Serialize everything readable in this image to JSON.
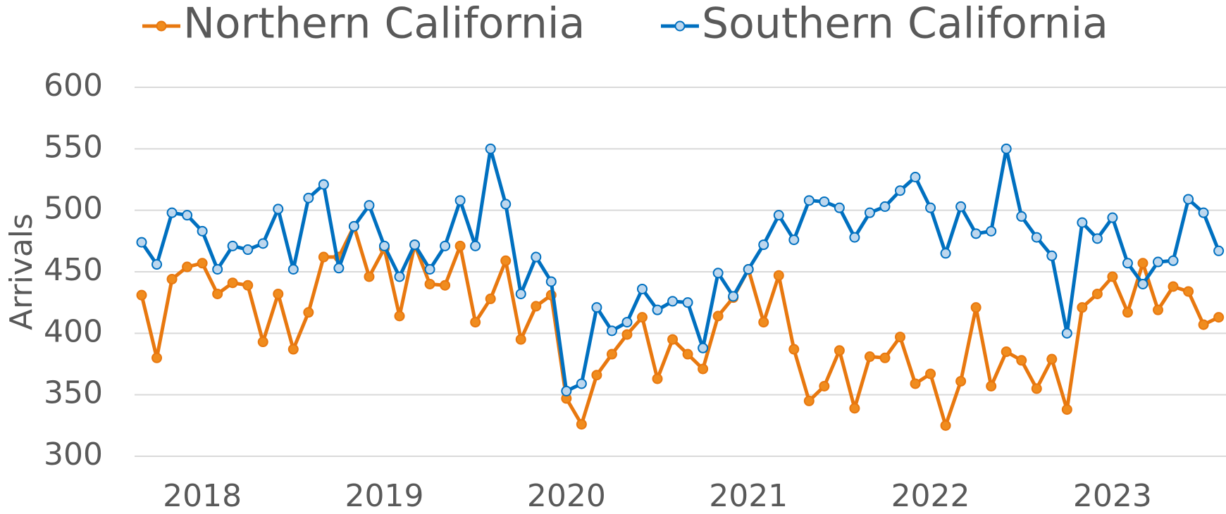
{
  "chart_data": {
    "type": "line",
    "y_label": "Arrivals",
    "categories": [
      null,
      null,
      null,
      null,
      "2018",
      null,
      null,
      null,
      null,
      null,
      null,
      null,
      null,
      null,
      null,
      null,
      "2019",
      null,
      null,
      null,
      null,
      null,
      null,
      null,
      null,
      null,
      null,
      null,
      "2020",
      null,
      null,
      null,
      null,
      null,
      null,
      null,
      null,
      null,
      null,
      null,
      "2021",
      null,
      null,
      null,
      null,
      null,
      null,
      null,
      null,
      null,
      null,
      null,
      "2022",
      null,
      null,
      null,
      null,
      null,
      null,
      null,
      null,
      null,
      null,
      null,
      "2023",
      null,
      null,
      null,
      null,
      null,
      null,
      null
    ],
    "series": [
      {
        "name": "Northern California",
        "color": "#e8780f",
        "marker_fill": "#f08c1e",
        "values": [
          431,
          380,
          444,
          454,
          457,
          432,
          441,
          439,
          393,
          432,
          387,
          417,
          462,
          462,
          487,
          446,
          469,
          414,
          472,
          440,
          439,
          471,
          409,
          428,
          459,
          395,
          422,
          431,
          347,
          326,
          366,
          383,
          399,
          413,
          363,
          395,
          383,
          371,
          414,
          429,
          452,
          409,
          447,
          387,
          345,
          357,
          386,
          339,
          381,
          380,
          397,
          359,
          367,
          325,
          361,
          421,
          357,
          385,
          378,
          355,
          379,
          338,
          421,
          432,
          446,
          417,
          457,
          419,
          438,
          434,
          407,
          413
        ]
      },
      {
        "name": "Southern California",
        "color": "#0070c0",
        "marker_fill": "#bdd7ee",
        "values": [
          474,
          456,
          498,
          496,
          483,
          452,
          471,
          468,
          473,
          501,
          452,
          510,
          521,
          453,
          487,
          504,
          471,
          446,
          472,
          452,
          471,
          508,
          471,
          550,
          505,
          432,
          462,
          442,
          353,
          359,
          421,
          402,
          409,
          436,
          419,
          426,
          425,
          388,
          449,
          430,
          452,
          472,
          496,
          476,
          508,
          507,
          502,
          478,
          498,
          503,
          516,
          527,
          502,
          465,
          503,
          481,
          483,
          550,
          495,
          478,
          463,
          400,
          490,
          477,
          494,
          457,
          440,
          458,
          459,
          509,
          498,
          467
        ]
      }
    ],
    "ylim": [
      300,
      600
    ],
    "yticks": [
      300,
      350,
      400,
      450,
      500,
      550,
      600
    ],
    "grid": true
  }
}
